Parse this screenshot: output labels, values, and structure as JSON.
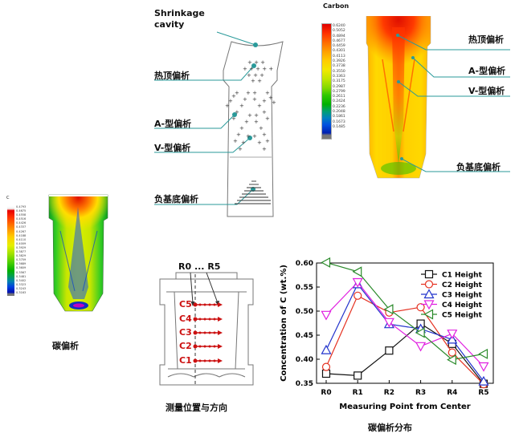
{
  "schematic": {
    "labels": {
      "shrinkage": "Shrinkage",
      "cavity": "cavity",
      "hot_top": "热顶偏析",
      "a_type": "A-型偏析",
      "v_type": "V-型偏析",
      "negative": "负基底偏析"
    }
  },
  "carbon_plot": {
    "legend_title": "Carbon",
    "scale": [
      "0.6240",
      "0.5052",
      "0.4894",
      "0.4677",
      "0.4459",
      "0.4301",
      "0.4113",
      "0.3926",
      "0.3738",
      "0.3550",
      "0.3363",
      "0.3175",
      "0.2987",
      "0.2799",
      "0.2611",
      "0.2424",
      "0.2236",
      "0.2048",
      "0.1861",
      "0.1673",
      "0.1485"
    ],
    "labels": {
      "hot_top": "热顶偏析",
      "a_type": "A-型偏析",
      "v_type": "V-型偏析",
      "negative": "负基底偏析"
    }
  },
  "left_plot": {
    "legend_title": "C",
    "scale": [
      "0.4793",
      "0.4675",
      "0.4558",
      "0.4516",
      "0.4426",
      "0.4337",
      "0.4267",
      "0.4188",
      "0.4110",
      "0.4009",
      "0.3929",
      "0.3877",
      "0.3829",
      "0.3759",
      "0.3689",
      "0.3609",
      "0.3567",
      "0.3481",
      "0.3402",
      "0.3323",
      "0.3243",
      "0.3163"
    ],
    "caption": "碳偏析"
  },
  "measurement": {
    "r_label": "R0 ... R5",
    "points": [
      "C5",
      "C4",
      "C3",
      "C2",
      "C1"
    ],
    "caption": "测量位置与方向"
  },
  "chart_caption": "碳偏析分布",
  "chart_data": {
    "type": "line",
    "categories": [
      "R0",
      "R1",
      "R2",
      "R3",
      "R4",
      "R5"
    ],
    "xlabel": "Measuring Point from Center",
    "ylabel": "Concentration of C (wt.%)",
    "ylim": [
      0.35,
      0.6
    ],
    "yticks": [
      "0.35",
      "0.40",
      "0.45",
      "0.50",
      "0.55",
      "0.60"
    ],
    "legend_placement": "top-right",
    "series": [
      {
        "name": "C1 Height",
        "color": "#111111",
        "marker": "square",
        "values": [
          0.37,
          0.366,
          0.418,
          0.474,
          0.432,
          0.349
        ]
      },
      {
        "name": "C2 Height",
        "color": "#e53222",
        "marker": "circle",
        "values": [
          0.384,
          0.532,
          0.497,
          0.508,
          0.414,
          0.348
        ]
      },
      {
        "name": "C3 Height",
        "color": "#2233cc",
        "marker": "triangle-up",
        "values": [
          0.419,
          0.556,
          0.473,
          0.463,
          0.441,
          0.354
        ]
      },
      {
        "name": "C4 Height",
        "color": "#e020e0",
        "marker": "triangle-down",
        "values": [
          0.492,
          0.56,
          0.477,
          0.427,
          0.453,
          0.385
        ]
      },
      {
        "name": "C5 Height",
        "color": "#2a8a2a",
        "marker": "triangle-left",
        "values": [
          0.601,
          0.582,
          0.504,
          0.455,
          0.399,
          0.411
        ]
      }
    ]
  }
}
